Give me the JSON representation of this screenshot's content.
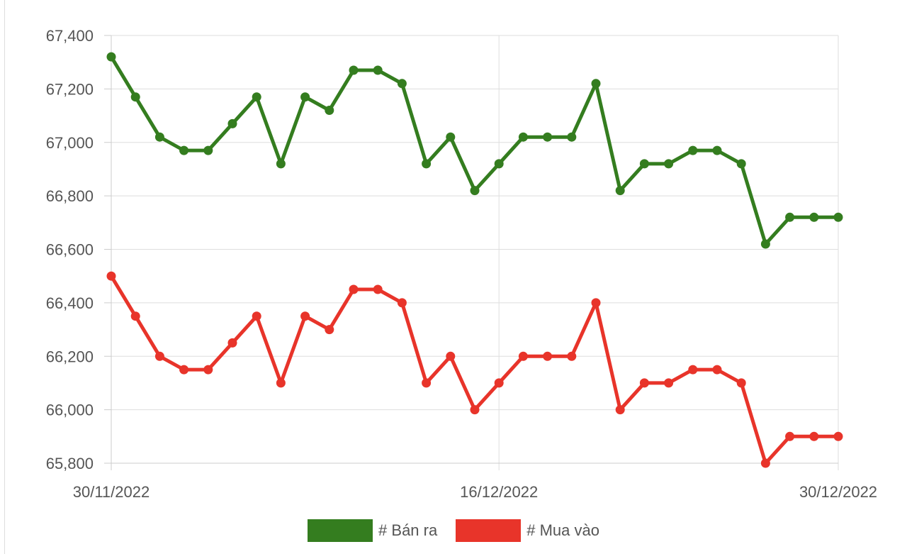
{
  "chart_data": {
    "type": "line",
    "x_tick_labels": [
      "30/11/2022",
      "16/12/2022",
      "30/12/2022"
    ],
    "ylim": [
      65800,
      67400
    ],
    "y_ticks": [
      65800,
      66000,
      66200,
      66400,
      66600,
      66800,
      67000,
      67200,
      67400
    ],
    "y_tick_labels": [
      "65,800",
      "66,000",
      "66,200",
      "66,400",
      "66,600",
      "66,800",
      "67,000",
      "67,200",
      "67,400"
    ],
    "grid": true,
    "legend_position": "bottom",
    "series": [
      {
        "name": "# Bán ra",
        "color": "#347d1f",
        "values": [
          67320,
          67170,
          67020,
          66970,
          66970,
          67070,
          67170,
          66920,
          67170,
          67120,
          67270,
          67270,
          67220,
          66920,
          67020,
          66820,
          66920,
          67020,
          67020,
          67020,
          67220,
          66820,
          66920,
          66920,
          66970,
          66970,
          66920,
          66620,
          66720,
          66720,
          66720
        ]
      },
      {
        "name": "# Mua vào",
        "color": "#e8342a",
        "values": [
          66500,
          66350,
          66200,
          66150,
          66150,
          66250,
          66350,
          66100,
          66350,
          66300,
          66450,
          66450,
          66400,
          66100,
          66200,
          66000,
          66100,
          66200,
          66200,
          66200,
          66400,
          66000,
          66100,
          66100,
          66150,
          66150,
          66100,
          65800,
          65900,
          65900,
          65900
        ]
      }
    ]
  }
}
